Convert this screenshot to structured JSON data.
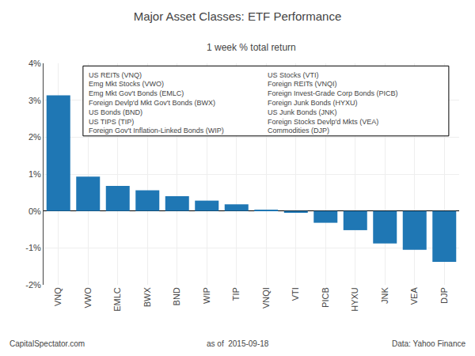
{
  "chart_data": {
    "type": "bar",
    "title": "Major Asset Classes: ETF Performance",
    "subtitle": "1 week % total return",
    "categories": [
      "VNQ",
      "VWO",
      "EMLC",
      "BWX",
      "BND",
      "WIP",
      "TIP",
      "VNQI",
      "VTI",
      "PICB",
      "HYXU",
      "JNK",
      "VEA",
      "DJP"
    ],
    "values": [
      3.13,
      0.93,
      0.68,
      0.56,
      0.4,
      0.28,
      0.18,
      0.02,
      -0.05,
      -0.32,
      -0.52,
      -0.88,
      -1.05,
      -1.38
    ],
    "ylim": [
      -2.0,
      4.0
    ],
    "yticks": [
      {
        "value": -2.0,
        "label": "-2%"
      },
      {
        "value": -1.0,
        "label": "-1%"
      },
      {
        "value": 0.0,
        "label": "0%"
      },
      {
        "value": 1.0,
        "label": "1%"
      },
      {
        "value": 2.0,
        "label": "2%"
      },
      {
        "value": 3.0,
        "label": "3%"
      },
      {
        "value": 4.0,
        "label": "4%"
      }
    ],
    "grid": true,
    "annotations": [
      "US REITs (VNQ)",
      "Emg Mkt Stocks (VWO)",
      "Emg Mkt Gov't Bonds (EMLC)",
      "Foreign Devlp'd Mkt Gov't Bonds (BWX)",
      "US Bonds (BND)",
      "US TIPS (TIP)",
      "Foreign Gov't Inflation-Linked Bonds (WIP)",
      "US Stocks (VTI)",
      "Foreign REITs (VNQI)",
      "Foreign Invest-Grade Corp Bonds (PICB)",
      "Foreign Junk Bonds (HYXU)",
      "US Junk Bonds (JNK)",
      "Foreign Stocks Devlp'd Mkts (VEA)",
      "Commodities (DJP)",
      "CapitalSpectator.com",
      "as of  2015-09-18",
      "Data: Yahoo Finance"
    ]
  }
}
